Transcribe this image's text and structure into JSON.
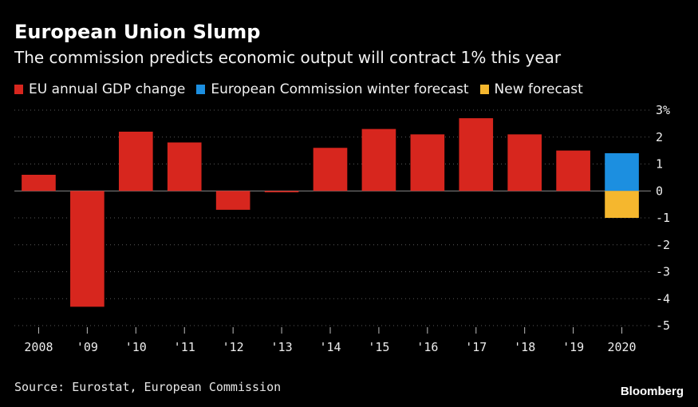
{
  "chart_data": {
    "type": "bar",
    "title": "European Union Slump",
    "subtitle": "The commission predicts economic output will contract 1% this year",
    "legend": [
      {
        "label": "EU annual GDP change",
        "color": "#d7261e"
      },
      {
        "label": "European Commission winter forecast",
        "color": "#1c8fe0"
      },
      {
        "label": "New forecast",
        "color": "#f5b72e"
      }
    ],
    "categories": [
      "2008",
      "'09",
      "'10",
      "'11",
      "'12",
      "'13",
      "'14",
      "'15",
      "'16",
      "'17",
      "'18",
      "'19",
      "2020"
    ],
    "series": [
      {
        "name": "EU annual GDP change",
        "color": "#d7261e",
        "values": [
          0.6,
          -4.3,
          2.2,
          1.8,
          -0.7,
          -0.05,
          1.6,
          2.3,
          2.1,
          2.7,
          2.1,
          1.5,
          null
        ]
      },
      {
        "name": "European Commission winter forecast",
        "color": "#1c8fe0",
        "values": [
          null,
          null,
          null,
          null,
          null,
          null,
          null,
          null,
          null,
          null,
          null,
          null,
          1.4
        ]
      },
      {
        "name": "New forecast",
        "color": "#f5b72e",
        "values": [
          null,
          null,
          null,
          null,
          null,
          null,
          null,
          null,
          null,
          null,
          null,
          null,
          -1.0
        ]
      }
    ],
    "yticks": [
      3,
      2,
      1,
      0,
      -1,
      -2,
      -3,
      -4,
      -5
    ],
    "ytick_labels": [
      "3%",
      "2",
      "1",
      "0",
      "-1",
      "-2",
      "-3",
      "-4",
      "-5"
    ],
    "ylim": [
      -5,
      3
    ],
    "xlabel": "",
    "ylabel": ""
  },
  "source": "Source: Eurostat, European Commission",
  "brand": "Bloomberg"
}
